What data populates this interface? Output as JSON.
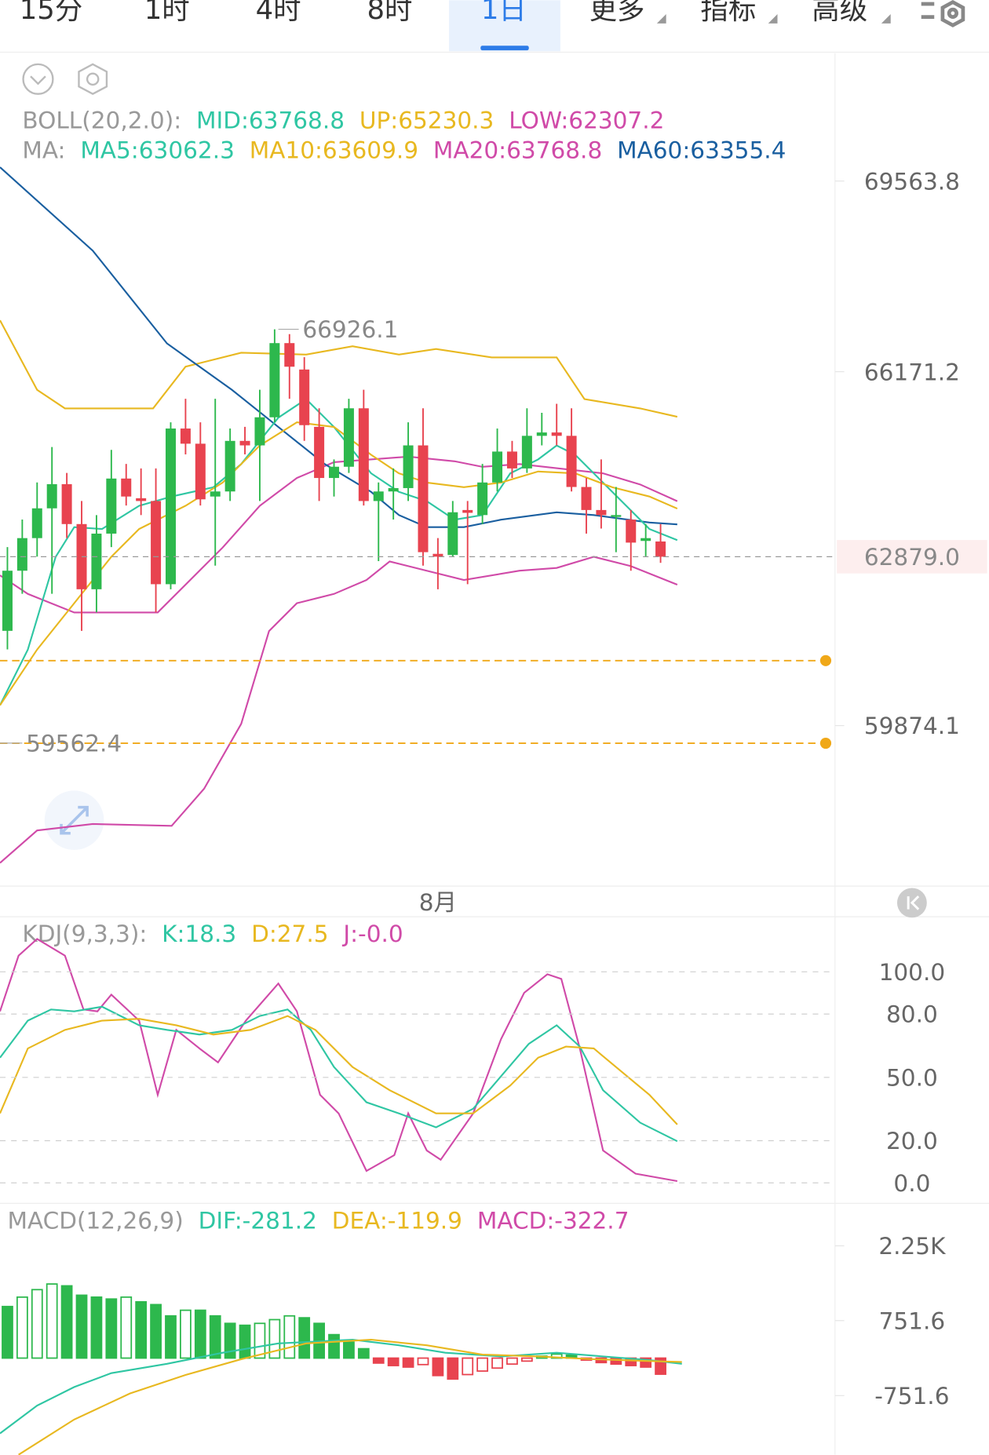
{
  "tabs": [
    "15分",
    "1时",
    "4时",
    "8时",
    "1日",
    "更多",
    "指标",
    "高级"
  ],
  "active_tab": 4,
  "boll_legend": [
    "BOLL(20,2.0):",
    "MID:63768.8",
    "UP:65230.3",
    "LOW:62307.2"
  ],
  "ma_legend": [
    "MA:",
    "MA5:63062.3",
    "MA10:63609.9",
    "MA20:63768.8",
    "MA60:63355.4"
  ],
  "kdj_legend": [
    "KDJ(9,3,3):",
    "K:18.3",
    "D:27.5",
    "J:-0.0"
  ],
  "macd_legend": [
    "MACD(12,26,9)",
    "DIF:-281.2",
    "DEA:-119.9",
    "MACD:-322.7"
  ],
  "price_chart": {
    "type": "candlestick",
    "up_color": "#2db84d",
    "down_color": "#e8434f",
    "categories": [
      null,
      null,
      null,
      null,
      null,
      null,
      null,
      null,
      null,
      null,
      null,
      null,
      null,
      null,
      null,
      null,
      null,
      null,
      null,
      null,
      null,
      null,
      null,
      null,
      null,
      null,
      null,
      null,
      null,
      "8月",
      null,
      null,
      null,
      null,
      null,
      null,
      null,
      null,
      null,
      null,
      null,
      null,
      null,
      null,
      null
    ],
    "ohlc": [
      [
        61560,
        63050,
        61230,
        62630
      ],
      [
        62630,
        63540,
        62220,
        63210
      ],
      [
        63210,
        64200,
        62880,
        63740
      ],
      [
        63740,
        64830,
        62220,
        64170
      ],
      [
        64170,
        64370,
        63210,
        63460
      ],
      [
        63460,
        63870,
        61560,
        62300
      ],
      [
        62300,
        63620,
        61890,
        63290
      ],
      [
        63290,
        64780,
        63050,
        64270
      ],
      [
        64270,
        64530,
        63790,
        63950
      ],
      [
        63920,
        64450,
        63620,
        63870
      ],
      [
        63870,
        64450,
        61890,
        62390
      ],
      [
        62390,
        65270,
        62300,
        65160
      ],
      [
        65160,
        65690,
        64700,
        64890
      ],
      [
        64890,
        65270,
        63790,
        63900
      ],
      [
        63950,
        65690,
        62720,
        64040
      ],
      [
        64040,
        65160,
        63870,
        64940
      ],
      [
        64940,
        65190,
        64700,
        64860
      ],
      [
        64860,
        65850,
        63870,
        65360
      ],
      [
        65360,
        66926.1,
        65270,
        66680
      ],
      [
        66680,
        66840,
        65690,
        66260
      ],
      [
        66210,
        66430,
        64940,
        65220
      ],
      [
        65190,
        65520,
        63870,
        64280
      ],
      [
        64280,
        64610,
        63950,
        64480
      ],
      [
        64480,
        65690,
        64370,
        65520
      ],
      [
        65520,
        65850,
        63790,
        63870
      ],
      [
        63870,
        64200,
        62800,
        64040
      ],
      [
        64040,
        64450,
        63540,
        64100
      ],
      [
        64100,
        65270,
        63870,
        64860
      ],
      [
        64860,
        65520,
        62720,
        62960
      ],
      [
        62930,
        63210,
        62300,
        62880
      ],
      [
        62910,
        63870,
        62880,
        63670
      ],
      [
        63710,
        63870,
        62390,
        63660
      ],
      [
        63620,
        64530,
        63460,
        64200
      ],
      [
        64200,
        65160,
        64040,
        64750
      ],
      [
        64750,
        64940,
        64280,
        64450
      ],
      [
        64450,
        65520,
        64370,
        65030
      ],
      [
        65030,
        65440,
        64860,
        65090
      ],
      [
        65090,
        65600,
        64860,
        65030
      ],
      [
        65030,
        65520,
        64040,
        64120
      ],
      [
        64120,
        64280,
        63290,
        63710
      ],
      [
        63710,
        64610,
        63380,
        63620
      ],
      [
        63600,
        64120,
        62960,
        63620
      ],
      [
        63540,
        63710,
        62630,
        63130
      ],
      [
        63160,
        63460,
        62880,
        63210
      ],
      [
        63150,
        63460,
        62770,
        62879.0
      ]
    ],
    "high_marker_index": 18,
    "low_marker": 59562.4,
    "current_price": {
      "value": 62879,
      "label": "62879.0"
    },
    "alert_lines": [
      61030,
      59560
    ],
    "alert_color": "#f0a818",
    "ylim": [
      57100,
      71840
    ],
    "yticks": [
      69563.8,
      66171.2,
      59874.1
    ]
  },
  "kdj_chart": {
    "type": "line",
    "ylim": [
      -9.7,
      126.1
    ],
    "yticks": [
      {
        "value": 100,
        "label": "100.0"
      },
      {
        "value": 80,
        "label": "80.0"
      },
      {
        "value": 50,
        "label": "50.0"
      },
      {
        "value": 20,
        "label": "20.0"
      },
      {
        "value": 0,
        "label": "0.0"
      }
    ]
  },
  "macd_chart": {
    "type": "bar",
    "values": [
      1034,
      1222,
      1372,
      1485,
      1448,
      1260,
      1222,
      1184,
      1222,
      1128,
      1072,
      846,
      959,
      959,
      846,
      696,
      658,
      696,
      771,
      846,
      808,
      696,
      470,
      320,
      188,
      -100,
      -150,
      -180,
      -130,
      -350,
      -420,
      -330,
      -260,
      -200,
      -120,
      -60,
      40,
      80,
      60,
      -40,
      -90,
      -120,
      -150,
      -180,
      -322.7
    ],
    "up_color": "#2db84d",
    "down_color": "#e8434f",
    "ylim": [
      -1937,
      3101
    ],
    "yticks": [
      {
        "value": 2250,
        "label": "2.25K"
      },
      751.6,
      -751.6
    ]
  }
}
